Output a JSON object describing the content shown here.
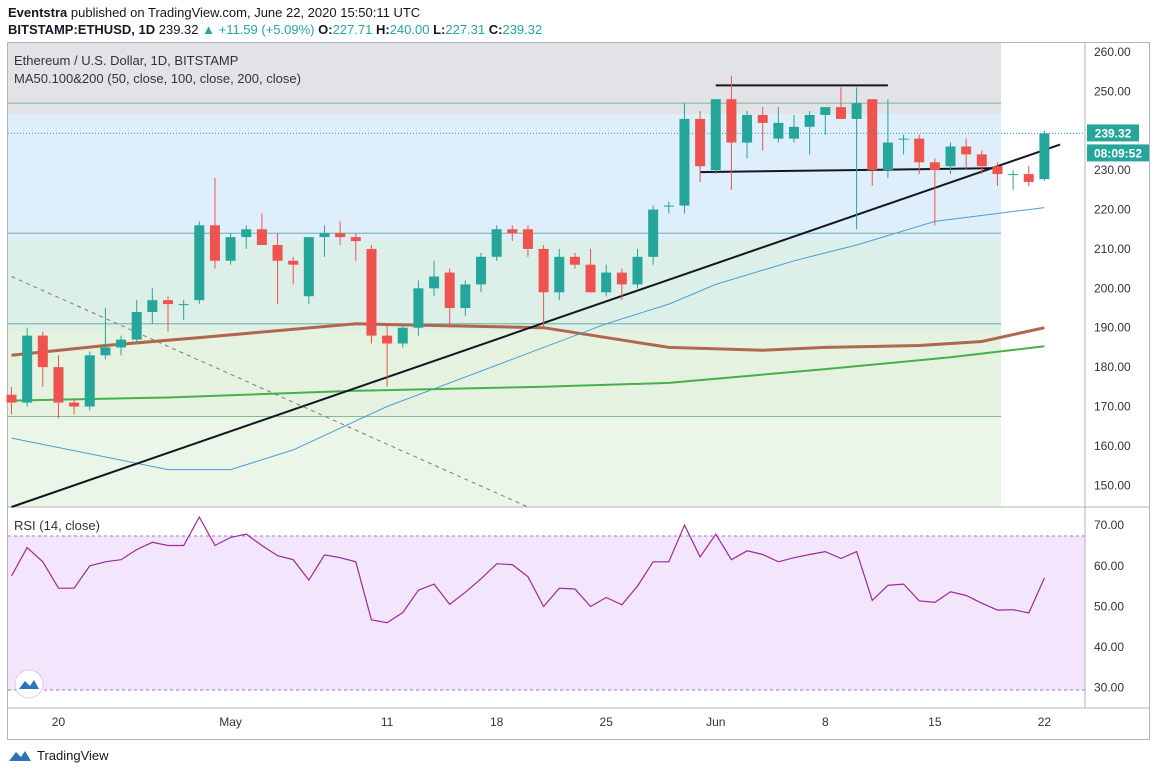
{
  "header": {
    "author": "Eventstra",
    "published": "published on TradingView.com, June 22, 2020 15:50:11 UTC",
    "symbol": "BITSTAMP:ETHUSD, 1D",
    "last": "239.32",
    "change": "▲ +11.59 (+5.09%)",
    "o_label": "O:",
    "o": "227.71",
    "h_label": "H:",
    "h": "240.00",
    "l_label": "L:",
    "l": "227.31",
    "c_label": "C:",
    "c": "239.32"
  },
  "pane_title": "Ethereum / U.S. Dollar, 1D, BITSTAMP",
  "ma_label": "MA50.100&200 (50, close, 100, close, 200, close)",
  "rsi_label": "RSI (14, close)",
  "price_tag": "239.32",
  "countdown_tag": "08:09:52",
  "footer_brand": "TradingView",
  "colors": {
    "up": "#26a69a",
    "down": "#ef5350",
    "ma50": "#4a9fd5",
    "ma100": "#b0664f",
    "ma200": "#47b04b",
    "rsi_line": "#9b2a9c",
    "rsi_band": "#f3e5fc",
    "trend": "#131722"
  },
  "chart_data": [
    {
      "type": "candlestick",
      "title": "Ethereum / U.S. Dollar, 1D, BITSTAMP",
      "x_tick_labels": [
        "20",
        "May",
        "11",
        "18",
        "25",
        "Jun",
        "8",
        "15",
        "22"
      ],
      "x_tick_indices": [
        3,
        14,
        24,
        31,
        38,
        45,
        52,
        59,
        66
      ],
      "y_ticks": [
        150,
        160,
        170,
        180,
        190,
        200,
        210,
        220,
        230,
        240,
        250,
        260
      ],
      "y_tick_labels": [
        "150.00",
        "160.00",
        "170.00",
        "180.00",
        "190.00",
        "200.00",
        "210.00",
        "220.00",
        "230.00",
        "240.00",
        "250.00",
        "260.00"
      ],
      "ylim": [
        144.5,
        261
      ],
      "candles": [
        {
          "o": 173,
          "h": 175,
          "l": 168,
          "c": 171
        },
        {
          "o": 171,
          "h": 190,
          "l": 170,
          "c": 188
        },
        {
          "o": 188,
          "h": 189,
          "l": 175,
          "c": 180
        },
        {
          "o": 180,
          "h": 183,
          "l": 167,
          "c": 171
        },
        {
          "o": 171,
          "h": 172,
          "l": 168,
          "c": 170
        },
        {
          "o": 170,
          "h": 184,
          "l": 169,
          "c": 183
        },
        {
          "o": 183,
          "h": 195,
          "l": 182,
          "c": 185
        },
        {
          "o": 185,
          "h": 188,
          "l": 183,
          "c": 187
        },
        {
          "o": 187,
          "h": 197,
          "l": 186,
          "c": 194
        },
        {
          "o": 194,
          "h": 200,
          "l": 191,
          "c": 197
        },
        {
          "o": 197,
          "h": 198,
          "l": 189,
          "c": 196
        },
        {
          "o": 196,
          "h": 197,
          "l": 192,
          "c": 196
        },
        {
          "o": 197,
          "h": 217,
          "l": 196,
          "c": 216
        },
        {
          "o": 216,
          "h": 228,
          "l": 205,
          "c": 207
        },
        {
          "o": 207,
          "h": 214,
          "l": 206,
          "c": 213
        },
        {
          "o": 213,
          "h": 216,
          "l": 210,
          "c": 215
        },
        {
          "o": 215,
          "h": 219,
          "l": 211,
          "c": 211
        },
        {
          "o": 211,
          "h": 214,
          "l": 196,
          "c": 207
        },
        {
          "o": 207,
          "h": 208,
          "l": 201,
          "c": 206
        },
        {
          "o": 198,
          "h": 213,
          "l": 196,
          "c": 213
        },
        {
          "o": 213,
          "h": 216,
          "l": 208,
          "c": 214
        },
        {
          "o": 214,
          "h": 217,
          "l": 211,
          "c": 213
        },
        {
          "o": 213,
          "h": 214,
          "l": 207,
          "c": 212
        },
        {
          "o": 210,
          "h": 211,
          "l": 186,
          "c": 188
        },
        {
          "o": 188,
          "h": 191,
          "l": 175,
          "c": 186
        },
        {
          "o": 186,
          "h": 191,
          "l": 185,
          "c": 190
        },
        {
          "o": 190,
          "h": 202,
          "l": 188,
          "c": 200
        },
        {
          "o": 200,
          "h": 207,
          "l": 198,
          "c": 203
        },
        {
          "o": 204,
          "h": 205,
          "l": 190,
          "c": 195
        },
        {
          "o": 195,
          "h": 202,
          "l": 193,
          "c": 201
        },
        {
          "o": 201,
          "h": 209,
          "l": 199,
          "c": 208
        },
        {
          "o": 208,
          "h": 216,
          "l": 207,
          "c": 215
        },
        {
          "o": 215,
          "h": 216,
          "l": 212,
          "c": 214
        },
        {
          "o": 215,
          "h": 216,
          "l": 208,
          "c": 210
        },
        {
          "o": 210,
          "h": 211,
          "l": 190,
          "c": 199
        },
        {
          "o": 199,
          "h": 210,
          "l": 197,
          "c": 208
        },
        {
          "o": 208,
          "h": 209,
          "l": 205,
          "c": 206
        },
        {
          "o": 206,
          "h": 210,
          "l": 199,
          "c": 199
        },
        {
          "o": 199,
          "h": 206,
          "l": 198,
          "c": 204
        },
        {
          "o": 204,
          "h": 205,
          "l": 197,
          "c": 201
        },
        {
          "o": 201,
          "h": 210,
          "l": 200,
          "c": 208
        },
        {
          "o": 208,
          "h": 221,
          "l": 206,
          "c": 220
        },
        {
          "o": 221,
          "h": 222,
          "l": 219,
          "c": 221
        },
        {
          "o": 221,
          "h": 247,
          "l": 219,
          "c": 243
        },
        {
          "o": 243,
          "h": 245,
          "l": 227,
          "c": 231
        },
        {
          "o": 230,
          "h": 248,
          "l": 229,
          "c": 248
        },
        {
          "o": 248,
          "h": 254,
          "l": 225,
          "c": 237
        },
        {
          "o": 237,
          "h": 245,
          "l": 233,
          "c": 244
        },
        {
          "o": 244,
          "h": 246,
          "l": 235,
          "c": 242
        },
        {
          "o": 238,
          "h": 246,
          "l": 237,
          "c": 242
        },
        {
          "o": 238,
          "h": 244,
          "l": 237,
          "c": 241
        },
        {
          "o": 241,
          "h": 245,
          "l": 234,
          "c": 244
        },
        {
          "o": 244,
          "h": 246,
          "l": 239,
          "c": 246
        },
        {
          "o": 246,
          "h": 251,
          "l": 243,
          "c": 243
        },
        {
          "o": 243,
          "h": 251,
          "l": 215,
          "c": 247
        },
        {
          "o": 248,
          "h": 248,
          "l": 226,
          "c": 230
        },
        {
          "o": 230,
          "h": 248,
          "l": 228,
          "c": 237
        },
        {
          "o": 238,
          "h": 239,
          "l": 234,
          "c": 238
        },
        {
          "o": 238,
          "h": 239,
          "l": 229,
          "c": 232
        },
        {
          "o": 232,
          "h": 233,
          "l": 216,
          "c": 230
        },
        {
          "o": 231,
          "h": 237,
          "l": 229,
          "c": 236
        },
        {
          "o": 236,
          "h": 238,
          "l": 230,
          "c": 234
        },
        {
          "o": 234,
          "h": 235,
          "l": 229,
          "c": 231
        },
        {
          "o": 231,
          "h": 232,
          "l": 226,
          "c": 229
        },
        {
          "o": 229,
          "h": 230,
          "l": 225,
          "c": 229
        },
        {
          "o": 229,
          "h": 231,
          "l": 226,
          "c": 227
        },
        {
          "o": 227.71,
          "h": 240.0,
          "l": 227.31,
          "c": 239.32
        }
      ],
      "ma50": [
        [
          0,
          162
        ],
        [
          10,
          154
        ],
        [
          14,
          154
        ],
        [
          18,
          159
        ],
        [
          24,
          170
        ],
        [
          30,
          179
        ],
        [
          38,
          191
        ],
        [
          42,
          196
        ],
        [
          45,
          201
        ],
        [
          50,
          207
        ],
        [
          54,
          211
        ],
        [
          59,
          217
        ],
        [
          66,
          220.5
        ]
      ],
      "ma100": [
        [
          0,
          183
        ],
        [
          6,
          185.5
        ],
        [
          12,
          187.5
        ],
        [
          22,
          191
        ],
        [
          34,
          190
        ],
        [
          42,
          185
        ],
        [
          48,
          184.3
        ],
        [
          52,
          185
        ],
        [
          58,
          185.5
        ],
        [
          62,
          186.5
        ],
        [
          66,
          190
        ]
      ],
      "ma200": [
        [
          0,
          171.5
        ],
        [
          10,
          172.3
        ],
        [
          22,
          174
        ],
        [
          34,
          175
        ],
        [
          42,
          176
        ],
        [
          52,
          179.5
        ],
        [
          60,
          182.5
        ],
        [
          66,
          185.3
        ]
      ],
      "horizontal_levels": [
        247,
        214,
        191,
        167.5
      ],
      "trendlines": [
        {
          "from": [
            0,
            144.5
          ],
          "to": [
            67,
            236.5
          ],
          "style": "solid"
        },
        {
          "from": [
            45,
            251.5
          ],
          "to": [
            56,
            251.5
          ],
          "style": "solid"
        },
        {
          "from": [
            44,
            229.5
          ],
          "to": [
            63,
            230.5
          ],
          "style": "solid"
        },
        {
          "from": [
            0,
            203
          ],
          "to": [
            33,
            144.5
          ],
          "style": "dashed"
        }
      ],
      "last_price": 239.32
    },
    {
      "type": "line",
      "title": "RSI (14, close)",
      "y_ticks": [
        30,
        40,
        50,
        60,
        70
      ],
      "y_tick_labels": [
        "30.00",
        "40.00",
        "50.00",
        "60.00",
        "70.00"
      ],
      "ylim": [
        25,
        73.5
      ],
      "band": [
        30,
        70
      ],
      "values": [
        57.5,
        64.5,
        61,
        54.5,
        54.5,
        60,
        61,
        61.5,
        64,
        65.8,
        65,
        65,
        72,
        65,
        67,
        67.8,
        65,
        62.5,
        61.5,
        56.5,
        62.7,
        62,
        61,
        46.7,
        46,
        48.5,
        54,
        55.5,
        50.5,
        53.5,
        56.8,
        60.5,
        60.3,
        57.3,
        50,
        54.5,
        54.3,
        50,
        52.2,
        50.4,
        55,
        61,
        61,
        70,
        62.2,
        67.8,
        61.5,
        63.7,
        62.8,
        61,
        62,
        62.8,
        63.5,
        61.8,
        63.5,
        51.5,
        55.2,
        55.5,
        51.4,
        51,
        53.6,
        52.7,
        50.8,
        49.1,
        49.2,
        48.4,
        57
      ]
    }
  ]
}
